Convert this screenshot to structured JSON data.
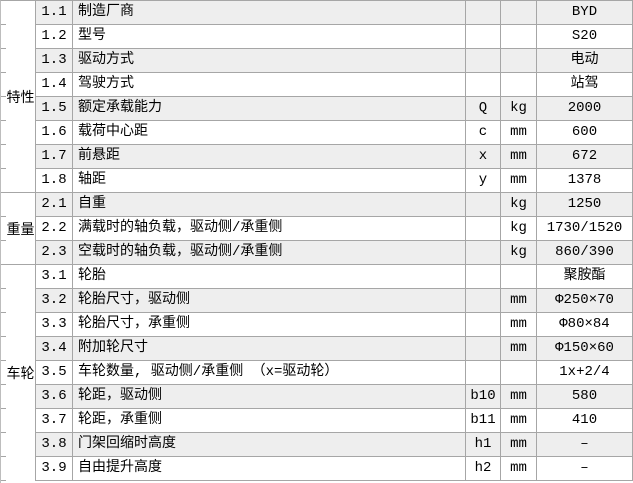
{
  "colors": {
    "row_shade": "#eeeeee",
    "row_plain": "#ffffff",
    "border": "#a6a6a6",
    "text": "#000000"
  },
  "table": {
    "groups": [
      {
        "label": "特性",
        "row_span": 8
      },
      {
        "label": "重量",
        "row_span": 3
      },
      {
        "label": "车轮",
        "row_span": 9
      }
    ],
    "rows": [
      {
        "num": "1.1",
        "desc": "制造厂商",
        "sym": "",
        "unit": "",
        "val": "BYD"
      },
      {
        "num": "1.2",
        "desc": "型号",
        "sym": "",
        "unit": "",
        "val": "S20"
      },
      {
        "num": "1.3",
        "desc": "驱动方式",
        "sym": "",
        "unit": "",
        "val": "电动"
      },
      {
        "num": "1.4",
        "desc": "驾驶方式",
        "sym": "",
        "unit": "",
        "val": "站驾"
      },
      {
        "num": "1.5",
        "desc": "额定承载能力",
        "sym": "Q",
        "unit": "kg",
        "val": "2000"
      },
      {
        "num": "1.6",
        "desc": "载荷中心距",
        "sym": "c",
        "unit": "mm",
        "val": "600"
      },
      {
        "num": "1.7",
        "desc": "前悬距",
        "sym": "x",
        "unit": "mm",
        "val": "672"
      },
      {
        "num": "1.8",
        "desc": "轴距",
        "sym": "y",
        "unit": "mm",
        "val": "1378"
      },
      {
        "num": "2.1",
        "desc": "自重",
        "sym": "",
        "unit": "kg",
        "val": "1250"
      },
      {
        "num": "2.2",
        "desc": "满载时的轴负载，驱动侧/承重侧",
        "sym": "",
        "unit": "kg",
        "val": "1730/1520"
      },
      {
        "num": "2.3",
        "desc": "空载时的轴负载，驱动侧/承重侧",
        "sym": "",
        "unit": "kg",
        "val": "860/390"
      },
      {
        "num": "3.1",
        "desc": "轮胎",
        "sym": "",
        "unit": "",
        "val": "聚胺酯"
      },
      {
        "num": "3.2",
        "desc": "轮胎尺寸，驱动侧",
        "sym": "",
        "unit": "mm",
        "val": "Φ250×70"
      },
      {
        "num": "3.3",
        "desc": "轮胎尺寸，承重侧",
        "sym": "",
        "unit": "mm",
        "val": "Φ80×84"
      },
      {
        "num": "3.4",
        "desc": "附加轮尺寸",
        "sym": "",
        "unit": "mm",
        "val": "Φ150×60"
      },
      {
        "num": "3.5",
        "desc": "车轮数量, 驱动侧/承重侧 （x=驱动轮）",
        "sym": "",
        "unit": "",
        "val": "1x+2/4"
      },
      {
        "num": "3.6",
        "desc": "轮距，驱动侧",
        "sym": "b10",
        "unit": "mm",
        "val": "580"
      },
      {
        "num": "3.7",
        "desc": "轮距，承重侧",
        "sym": "b11",
        "unit": "mm",
        "val": "410"
      },
      {
        "num": "3.8",
        "desc": "门架回缩时高度",
        "sym": "h1",
        "unit": "mm",
        "val": "–"
      },
      {
        "num": "3.9",
        "desc": "自由提升高度",
        "sym": "h2",
        "unit": "mm",
        "val": "–"
      }
    ]
  }
}
